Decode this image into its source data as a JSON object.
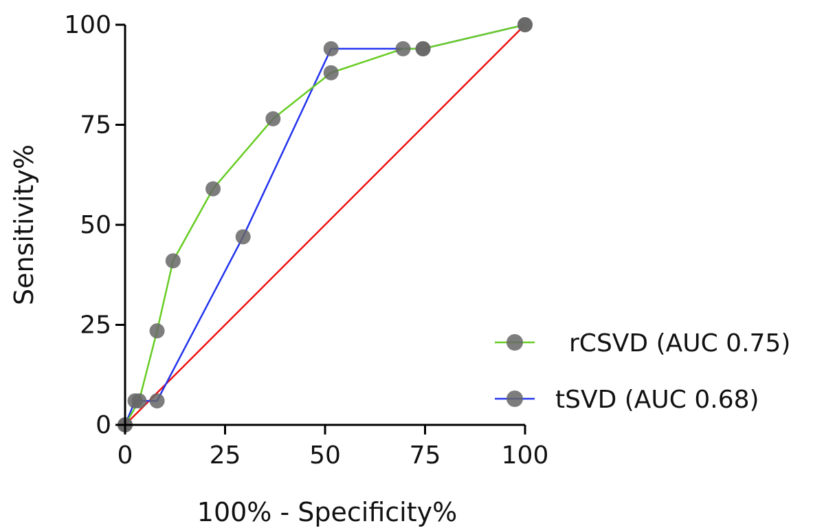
{
  "chart_data": {
    "type": "line",
    "xlabel": "100% - Specificity%",
    "ylabel": "Sensitivity%",
    "xlim": [
      0,
      100
    ],
    "ylim": [
      0,
      100
    ],
    "x_ticks": [
      "0",
      "25",
      "50",
      "75",
      "100"
    ],
    "y_ticks": [
      "0",
      "25",
      "50",
      "75",
      "100"
    ],
    "grid": false,
    "legend_position": "bottom-right",
    "series": [
      {
        "name": "rCSVD (AUC 0.75)",
        "color": "#66cc22",
        "marker_color": "#666666",
        "points": [
          [
            0,
            0
          ],
          [
            3.5,
            6
          ],
          [
            8,
            23.5
          ],
          [
            12,
            41
          ],
          [
            22,
            59
          ],
          [
            37,
            76.5
          ],
          [
            51.5,
            88
          ],
          [
            69.5,
            94
          ],
          [
            74.5,
            94
          ],
          [
            100,
            100
          ]
        ]
      },
      {
        "name": "tSVD (AUC 0.68)",
        "color": "#2233ee",
        "marker_color": "#666666",
        "points": [
          [
            0,
            0
          ],
          [
            2.5,
            6
          ],
          [
            8,
            6
          ],
          [
            29.5,
            47
          ],
          [
            51.5,
            94
          ],
          [
            74.5,
            94
          ],
          [
            100,
            100
          ]
        ]
      },
      {
        "name": "",
        "color": "#ee1111",
        "points": [
          [
            0,
            0
          ],
          [
            100,
            100
          ]
        ]
      }
    ]
  }
}
